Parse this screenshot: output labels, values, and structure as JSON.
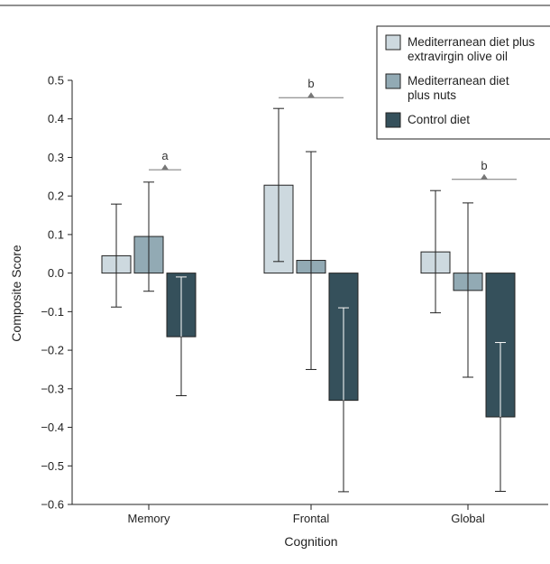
{
  "chart_data": {
    "type": "bar",
    "xlabel": "Cognition",
    "ylabel": "Composite Score",
    "ylim": [
      -0.6,
      0.5
    ],
    "yticks": [
      0.5,
      0.4,
      0.3,
      0.2,
      0.1,
      0.0,
      -0.1,
      -0.2,
      -0.3,
      -0.4,
      -0.5,
      -0.6
    ],
    "ytick_labels": [
      "0.5",
      "0.4",
      "0.3",
      "0.2",
      "0.1",
      "0.0",
      "−0.1",
      "−0.2",
      "−0.3",
      "−0.4",
      "−0.5",
      "−0.6"
    ],
    "grid": false,
    "legend_position": "top-right",
    "categories": [
      "Memory",
      "Frontal",
      "Global"
    ],
    "series": [
      {
        "name": "Mediterranean diet plus extravirgin olive oil",
        "legend_lines": [
          "Mediterranean diet plus",
          "extravirgin olive oil"
        ],
        "color": "#cdd9df",
        "values": [
          0.045,
          0.228,
          0.055
        ],
        "err_low": [
          -0.088,
          0.03,
          -0.103
        ],
        "err_high": [
          0.179,
          0.427,
          0.214
        ]
      },
      {
        "name": "Mediterranean diet plus nuts",
        "legend_lines": [
          "Mediterranean diet",
          "plus nuts"
        ],
        "color": "#92aab4",
        "values": [
          0.095,
          0.033,
          -0.045
        ],
        "err_low": [
          -0.047,
          -0.25,
          -0.27
        ],
        "err_high": [
          0.236,
          0.315,
          0.182
        ]
      },
      {
        "name": "Control diet",
        "legend_lines": [
          "Control diet"
        ],
        "color": "#35505b",
        "values": [
          -0.165,
          -0.33,
          -0.373
        ],
        "err_low": [
          -0.318,
          -0.567,
          -0.566
        ],
        "err_high": [
          -0.01,
          -0.09,
          -0.18
        ]
      }
    ],
    "annotations": [
      {
        "category": "Memory",
        "label": "a",
        "y": 0.268
      },
      {
        "category": "Frontal",
        "label": "b",
        "y": 0.455
      },
      {
        "category": "Global",
        "label": "b",
        "y": 0.243
      }
    ]
  }
}
